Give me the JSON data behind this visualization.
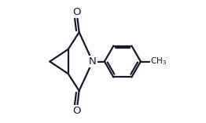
{
  "bg_color": "#ffffff",
  "line_color": "#1a1a2e",
  "line_width": 1.6,
  "figsize": [
    2.62,
    1.57
  ],
  "dpi": 100,
  "xlim": [
    0,
    1.0
  ],
  "ylim": [
    0,
    1.0
  ]
}
